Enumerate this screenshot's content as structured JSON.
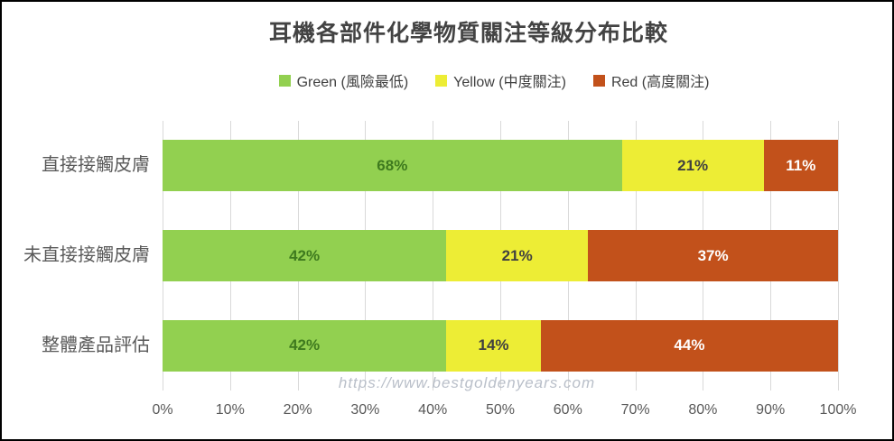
{
  "title": "耳機各部件化學物質關注等級分布比較",
  "watermark": "https://www.bestgoldenyears.com",
  "legend": [
    {
      "label": "Green (風險最低)",
      "color": "#92D050"
    },
    {
      "label": "Yellow (中度關注)",
      "color": "#EDED35"
    },
    {
      "label": "Red (高度關注)",
      "color": "#C2511B"
    }
  ],
  "colors": {
    "gridline": "#d9d9d9",
    "axis_text": "#595959",
    "title_text": "#434343",
    "frame_border": "#000000",
    "background": "#ffffff",
    "watermark_text": "#b9bfc9"
  },
  "chart_data": {
    "type": "bar",
    "orientation": "horizontal",
    "stacked": true,
    "title": "耳機各部件化學物質關注等級分布比較",
    "categories": [
      "直接接觸皮膚",
      "未直接接觸皮膚",
      "整體產品評估"
    ],
    "series": [
      {
        "key": "green",
        "name": "Green (風險最低)",
        "color": "#92D050",
        "label_color": "#3E7A1E",
        "values": [
          68,
          42,
          42
        ]
      },
      {
        "key": "yellow",
        "name": "Yellow (中度關注)",
        "color": "#EDED35",
        "label_color": "#404040",
        "values": [
          21,
          21,
          14
        ]
      },
      {
        "key": "red",
        "name": "Red (高度關注)",
        "color": "#C2511B",
        "label_color": "#FFFFFF",
        "values": [
          11,
          37,
          44
        ]
      }
    ],
    "x_ticks": [
      "0%",
      "10%",
      "20%",
      "30%",
      "40%",
      "50%",
      "60%",
      "70%",
      "80%",
      "90%",
      "100%"
    ],
    "xlim": [
      0,
      100
    ],
    "value_suffix": "%",
    "grid": true,
    "legend_position": "top"
  }
}
